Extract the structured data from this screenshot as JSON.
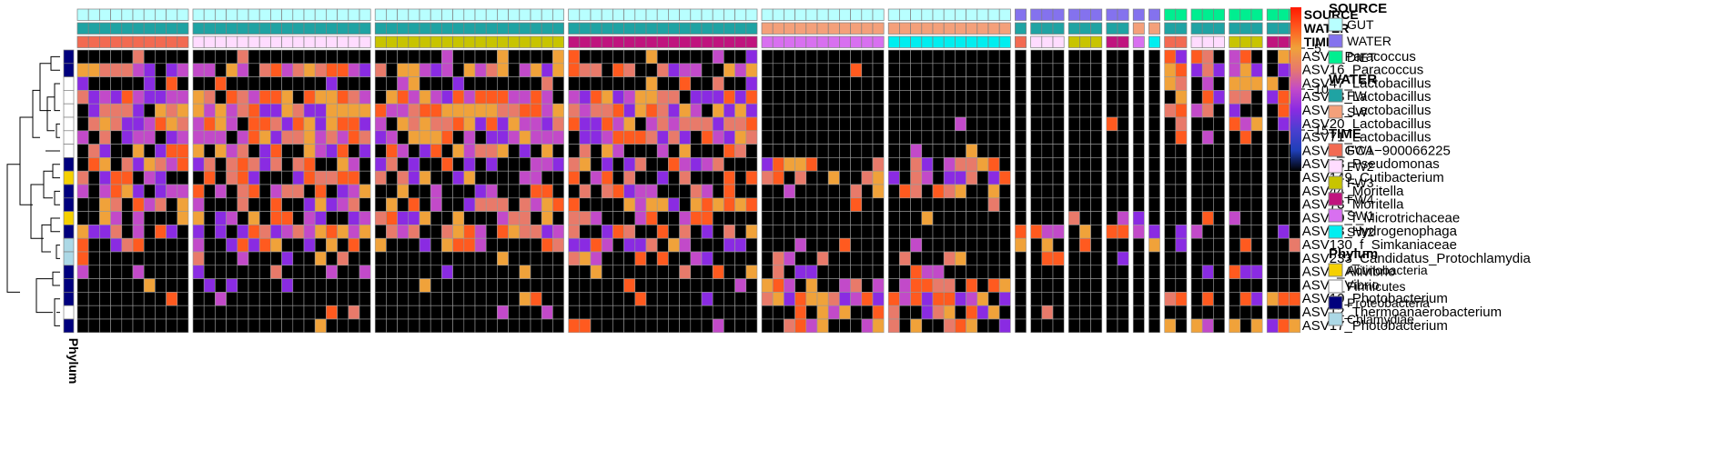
{
  "chart_data": {
    "type": "heatmap",
    "value_range": [
      -20,
      0
    ],
    "colorbar_ticks": [
      -5,
      -10,
      -15
    ],
    "color_scale": [
      "#000000",
      "#1f3fb8",
      "#8a2be2",
      "#c24ac9",
      "#e87a6a",
      "#f0a23a",
      "#ff5a1f",
      "#ff1a00"
    ],
    "column_groups": [
      {
        "n": 10,
        "source": "GUT",
        "water": "FW",
        "time": "FW1"
      },
      {
        "n": 16,
        "source": "GUT",
        "water": "FW",
        "time": "FW2"
      },
      {
        "n": 17,
        "source": "GUT",
        "water": "FW",
        "time": "FW3"
      },
      {
        "n": 17,
        "source": "GUT",
        "water": "FW",
        "time": "FW4"
      },
      {
        "n": 11,
        "source": "GUT",
        "water": "SW",
        "time": "SW1"
      },
      {
        "n": 11,
        "source": "GUT",
        "water": "SW",
        "time": "SW2"
      },
      {
        "n": 1,
        "source": "WATER",
        "water": "FW",
        "time": "FW1"
      },
      {
        "n": 3,
        "source": "WATER",
        "water": "FW",
        "time": "FW2"
      },
      {
        "n": 3,
        "source": "WATER",
        "water": "FW",
        "time": "FW3"
      },
      {
        "n": 2,
        "source": "WATER",
        "water": "FW",
        "time": "FW4"
      },
      {
        "n": 1,
        "source": "WATER",
        "water": "SW",
        "time": "SW1"
      },
      {
        "n": 1,
        "source": "WATER",
        "water": "SW",
        "time": "SW2"
      },
      {
        "n": 2,
        "source": "DIET",
        "water": "FW",
        "time": "FW1"
      },
      {
        "n": 3,
        "source": "DIET",
        "water": "FW",
        "time": "FW2"
      },
      {
        "n": 3,
        "source": "DIET",
        "water": "FW",
        "time": "FW3"
      },
      {
        "n": 3,
        "source": "DIET",
        "water": "FW",
        "time": "FW4"
      }
    ],
    "rows": [
      {
        "label": "ASV6_Paracoccus",
        "phylum": "Proteobacteria"
      },
      {
        "label": "ASV16_Paracoccus",
        "phylum": "Proteobacteria"
      },
      {
        "label": "ASV47_Lactobacillus",
        "phylum": "Firmicutes"
      },
      {
        "label": "ASV23_Lactobacillus",
        "phylum": "Firmicutes"
      },
      {
        "label": "ASV41_Lactobacillus",
        "phylum": "Firmicutes"
      },
      {
        "label": "ASV20_Lactobacillus",
        "phylum": "Firmicutes"
      },
      {
        "label": "ASV71_Lactobacillus",
        "phylum": "Firmicutes"
      },
      {
        "label": "ASV8_GCA−900066225",
        "phylum": "Firmicutes"
      },
      {
        "label": "ASV33_Pseudomonas",
        "phylum": "Proteobacteria"
      },
      {
        "label": "ASV149_Cutibacterium",
        "phylum": "Actinobacteria"
      },
      {
        "label": "ASV44_Moritella",
        "phylum": "Proteobacteria"
      },
      {
        "label": "ASV78_Moritella",
        "phylum": "Proteobacteria"
      },
      {
        "label": "ASV60_f_Microtrichaceae",
        "phylum": "Actinobacteria"
      },
      {
        "label": "ASV13_Hydrogenophaga",
        "phylum": "Proteobacteria"
      },
      {
        "label": "ASV130_f_Simkaniaceae",
        "phylum": "Chlamydiae"
      },
      {
        "label": "ASV233_Candidatus_Protochlamydia",
        "phylum": "Chlamydiae"
      },
      {
        "label": "ASV9_Aliivibrio",
        "phylum": "Proteobacteria"
      },
      {
        "label": "ASV5_Vibrio",
        "phylum": "Proteobacteria"
      },
      {
        "label": "ASV10_Photobacterium",
        "phylum": "Proteobacteria"
      },
      {
        "label": "ASV12_Thermoanaerobacterium",
        "phylum": "Firmicutes"
      },
      {
        "label": "ASV17_Photobacterium",
        "phylum": "Proteobacteria"
      }
    ],
    "annotation_bars": [
      "SOURCE",
      "WATER",
      "TIME"
    ],
    "side_label": "Phylum",
    "legends": [
      {
        "title": "SOURCE",
        "items": [
          {
            "label": "GUT",
            "color": "#b8ffff"
          },
          {
            "label": "WATER",
            "color": "#8472ee"
          },
          {
            "label": "DIET",
            "color": "#00ee90"
          }
        ]
      },
      {
        "title": "WATER",
        "items": [
          {
            "label": "FW",
            "color": "#1fa3a3"
          },
          {
            "label": "SW",
            "color": "#f4a07a"
          }
        ]
      },
      {
        "title": "TIME",
        "items": [
          {
            "label": "FW1",
            "color": "#f26a52"
          },
          {
            "label": "FW2",
            "color": "#ffdcff"
          },
          {
            "label": "FW3",
            "color": "#c8c400"
          },
          {
            "label": "FW4",
            "color": "#c0147e"
          },
          {
            "label": "SW1",
            "color": "#d870f0"
          },
          {
            "label": "SW2",
            "color": "#00eef0"
          }
        ]
      },
      {
        "title": "Phylum",
        "items": [
          {
            "label": "Actinobacteria",
            "color": "#f5d000"
          },
          {
            "label": "Firmicutes",
            "color": "#ffffff"
          },
          {
            "label": "Proteobacteria",
            "color": "#00007d"
          },
          {
            "label": "Chlamydiae",
            "color": "#acd8e6"
          }
        ]
      }
    ],
    "grid": true
  }
}
